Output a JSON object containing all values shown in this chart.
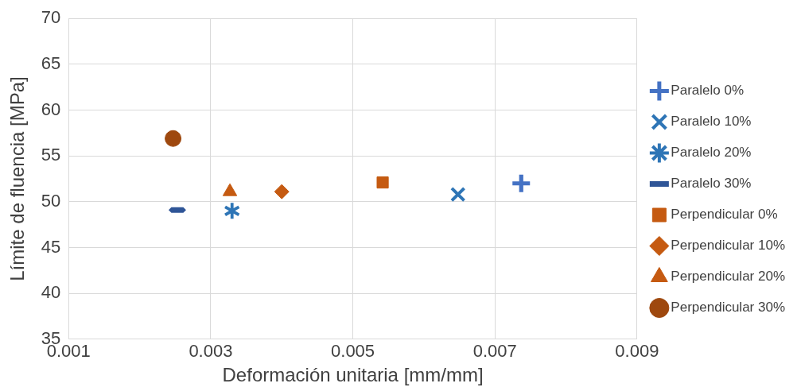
{
  "chart_data": {
    "type": "scatter",
    "xlabel": "Deformación unitaria [mm/mm]",
    "ylabel": "Límite de fluencia [MPa]",
    "xlim": [
      0.001,
      0.009
    ],
    "xticks": [
      0.001,
      0.003,
      0.005,
      0.007,
      0.009
    ],
    "ylim": [
      35,
      70
    ],
    "yticks": [
      35,
      40,
      45,
      50,
      55,
      60,
      65,
      70
    ],
    "grid": true,
    "legend": "right",
    "series": [
      {
        "name": "Paralelo 0%",
        "color": "#4472c4",
        "marker": "cross",
        "x": [
          0.00737
        ],
        "values": [
          52.0
        ]
      },
      {
        "name": "Paralelo 10%",
        "color": "#2e75b6",
        "marker": "x",
        "x": [
          0.00648
        ],
        "values": [
          50.8
        ]
      },
      {
        "name": "Paralelo 20%",
        "color": "#2e75b6",
        "marker": "star",
        "x": [
          0.0033
        ],
        "values": [
          49.0
        ]
      },
      {
        "name": "Paralelo 30%",
        "color": "#2f5597",
        "x": [
          0.00253
        ],
        "values": [
          49.1
        ]
      },
      {
        "name": "Perpendicular 0%",
        "color": "#c55a11",
        "marker": "square",
        "x": [
          0.00542
        ],
        "values": [
          52.1
        ]
      },
      {
        "name": "Perpendicular 10%",
        "color": "#c55a11",
        "marker": "diamond",
        "x": [
          0.004
        ],
        "values": [
          51.1
        ]
      },
      {
        "name": "Perpendicular 20%",
        "color": "#c55a11",
        "marker": "triangle",
        "x": [
          0.00327
        ],
        "values": [
          51.1
        ]
      },
      {
        "name": "Perpendicular 30%",
        "color": "#9e480e",
        "marker": "circle",
        "x": [
          0.00247
        ],
        "values": [
          56.9
        ]
      }
    ]
  }
}
